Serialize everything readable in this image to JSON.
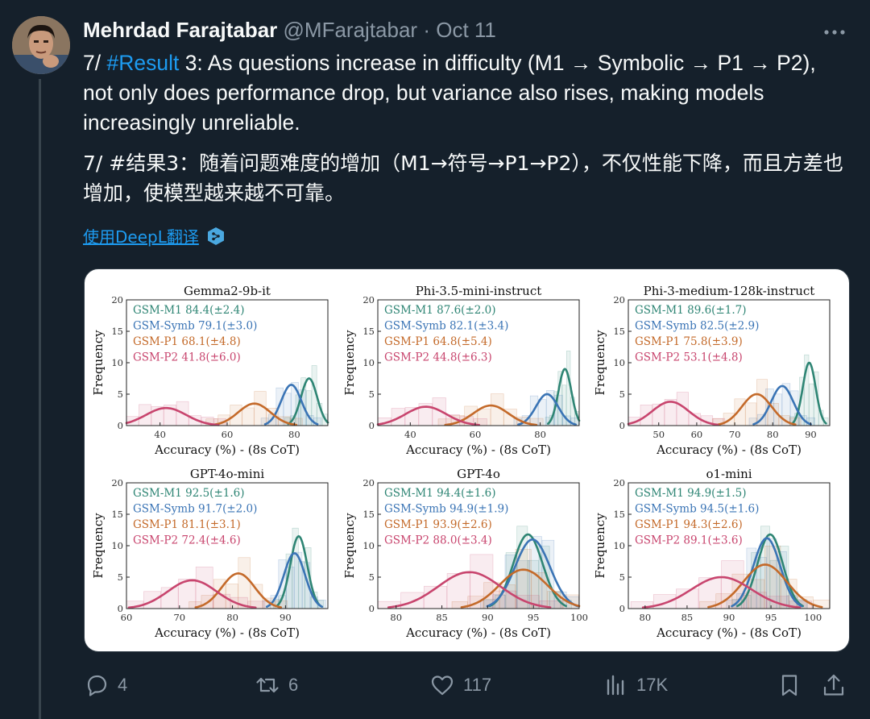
{
  "tweet": {
    "author_name": "Mehrdad Farajtabar",
    "handle": "@MFarajtabar",
    "separator": "·",
    "date": "Oct 11",
    "text_en_prefix": "7/ ",
    "hashtag": "#Result",
    "text_en_body": " 3: As questions increase in difficulty (M1 → Symbolic → P1 → P2), not only does performance drop, but variance also rises, making models increasingly unreliable.",
    "text_zh": "7/ #结果3：随着问题难度的增加（M1→符号→P1→P2），不仅性能下降，而且方差也增加，使模型越来越不可靠。",
    "translate_label": "使用DeepL翻译"
  },
  "actions": {
    "replies": "4",
    "reposts": "6",
    "likes": "117",
    "views": "17K"
  },
  "colors": {
    "M1": "#2e8574",
    "Symb": "#3a74b5",
    "P1": "#c46a2a",
    "P2": "#c8456e",
    "link": "#1d9bf0"
  },
  "icons": [
    "avatar",
    "more-icon",
    "deepl-icon",
    "reply-icon",
    "repost-icon",
    "like-icon",
    "views-icon",
    "bookmark-icon",
    "share-icon"
  ],
  "chart_data": [
    {
      "type": "area",
      "title": "Gemma2-9b-it",
      "xlabel": "Accuracy (%) - (8s CoT)",
      "ylabel": "Frequency",
      "xlim": [
        30,
        90
      ],
      "ylim": [
        0,
        20
      ],
      "xticks": [
        40,
        60,
        80
      ],
      "yticks": [
        0,
        5,
        10,
        15,
        20
      ],
      "series": [
        {
          "name": "GSM-M1",
          "mean": 84.4,
          "std": 2.4,
          "peak": 7.5
        },
        {
          "name": "GSM-Symb",
          "mean": 79.1,
          "std": 3.0,
          "peak": 6.5
        },
        {
          "name": "GSM-P1",
          "mean": 68.1,
          "std": 4.8,
          "peak": 3.5
        },
        {
          "name": "GSM-P2",
          "mean": 41.8,
          "std": 6.0,
          "peak": 2.8
        }
      ],
      "legend": [
        "GSM-M1 84.4(±2.4)",
        "GSM-Symb 79.1(±3.0)",
        "GSM-P1 68.1(±4.8)",
        "GSM-P2 41.8(±6.0)"
      ]
    },
    {
      "type": "area",
      "title": "Phi-3.5-mini-instruct",
      "xlabel": "Accuracy (%) - (8s CoT)",
      "ylabel": "Frequency",
      "xlim": [
        30,
        92
      ],
      "ylim": [
        0,
        20
      ],
      "xticks": [
        40,
        60,
        80
      ],
      "yticks": [
        0,
        5,
        10,
        15,
        20
      ],
      "series": [
        {
          "name": "GSM-M1",
          "mean": 87.6,
          "std": 2.0,
          "peak": 9
        },
        {
          "name": "GSM-Symb",
          "mean": 82.1,
          "std": 3.4,
          "peak": 5
        },
        {
          "name": "GSM-P1",
          "mean": 64.8,
          "std": 5.4,
          "peak": 3.2
        },
        {
          "name": "GSM-P2",
          "mean": 44.8,
          "std": 6.3,
          "peak": 3
        }
      ],
      "legend": [
        "GSM-M1 87.6(±2.0)",
        "GSM-Symb 82.1(±3.4)",
        "GSM-P1 64.8(±5.4)",
        "GSM-P2 44.8(±6.3)"
      ]
    },
    {
      "type": "area",
      "title": "Phi-3-medium-128k-instruct",
      "xlabel": "Accuracy (%) - (8s CoT)",
      "ylabel": "Frequency",
      "xlim": [
        42,
        95
      ],
      "ylim": [
        0,
        20
      ],
      "xticks": [
        50,
        60,
        70,
        80,
        90
      ],
      "yticks": [
        0,
        5,
        10,
        15,
        20
      ],
      "series": [
        {
          "name": "GSM-M1",
          "mean": 89.6,
          "std": 1.7,
          "peak": 10
        },
        {
          "name": "GSM-Symb",
          "mean": 82.5,
          "std": 2.9,
          "peak": 6.3
        },
        {
          "name": "GSM-P1",
          "mean": 75.8,
          "std": 3.9,
          "peak": 5
        },
        {
          "name": "GSM-P2",
          "mean": 53.1,
          "std": 4.8,
          "peak": 3.8
        }
      ],
      "legend": [
        "GSM-M1 89.6(±1.7)",
        "GSM-Symb 82.5(±2.9)",
        "GSM-P1 75.8(±3.9)",
        "GSM-P2 53.1(±4.8)"
      ]
    },
    {
      "type": "area",
      "title": "GPT-4o-mini",
      "xlabel": "Accuracy (%) - (8s CoT)",
      "ylabel": "Frequency",
      "xlim": [
        60,
        98
      ],
      "ylim": [
        0,
        20
      ],
      "xticks": [
        60,
        70,
        80,
        90
      ],
      "yticks": [
        0,
        5,
        10,
        15,
        20
      ],
      "series": [
        {
          "name": "GSM-M1",
          "mean": 92.5,
          "std": 1.6,
          "peak": 11.5
        },
        {
          "name": "GSM-Symb",
          "mean": 91.7,
          "std": 2.0,
          "peak": 8.8
        },
        {
          "name": "GSM-P1",
          "mean": 81.1,
          "std": 3.1,
          "peak": 5.6
        },
        {
          "name": "GSM-P2",
          "mean": 72.4,
          "std": 4.6,
          "peak": 4.5
        }
      ],
      "legend": [
        "GSM-M1 92.5(±1.6)",
        "GSM-Symb 91.7(±2.0)",
        "GSM-P1 81.1(±3.1)",
        "GSM-P2 72.4(±4.6)"
      ]
    },
    {
      "type": "area",
      "title": "GPT-4o",
      "xlabel": "Accuracy (%) - (8s CoT)",
      "ylabel": "Frequency",
      "xlim": [
        78,
        100
      ],
      "ylim": [
        0,
        20
      ],
      "xticks": [
        80,
        85,
        90,
        95,
        100
      ],
      "yticks": [
        0,
        5,
        10,
        15,
        20
      ],
      "series": [
        {
          "name": "GSM-M1",
          "mean": 94.4,
          "std": 1.6,
          "peak": 11.8
        },
        {
          "name": "GSM-Symb",
          "mean": 94.9,
          "std": 1.9,
          "peak": 11
        },
        {
          "name": "GSM-P1",
          "mean": 93.9,
          "std": 2.6,
          "peak": 6.2
        },
        {
          "name": "GSM-P2",
          "mean": 88.0,
          "std": 3.4,
          "peak": 5.8
        }
      ],
      "legend": [
        "GSM-M1 94.4(±1.6)",
        "GSM-Symb 94.9(±1.9)",
        "GSM-P1 93.9(±2.6)",
        "GSM-P2 88.0(±3.4)"
      ]
    },
    {
      "type": "area",
      "title": "o1-mini",
      "xlabel": "Accuracy (%) - (8s CoT)",
      "ylabel": "Frequency",
      "xlim": [
        78,
        102
      ],
      "ylim": [
        0,
        20
      ],
      "xticks": [
        80,
        85,
        90,
        95,
        100
      ],
      "yticks": [
        0,
        5,
        10,
        15,
        20
      ],
      "series": [
        {
          "name": "GSM-M1",
          "mean": 94.9,
          "std": 1.5,
          "peak": 11.8
        },
        {
          "name": "GSM-Symb",
          "mean": 94.5,
          "std": 1.6,
          "peak": 11.2
        },
        {
          "name": "GSM-P1",
          "mean": 94.3,
          "std": 2.6,
          "peak": 7
        },
        {
          "name": "GSM-P2",
          "mean": 89.1,
          "std": 3.6,
          "peak": 5
        }
      ],
      "legend": [
        "GSM-M1 94.9(±1.5)",
        "GSM-Symb 94.5(±1.6)",
        "GSM-P1 94.3(±2.6)",
        "GSM-P2 89.1(±3.6)"
      ]
    }
  ]
}
